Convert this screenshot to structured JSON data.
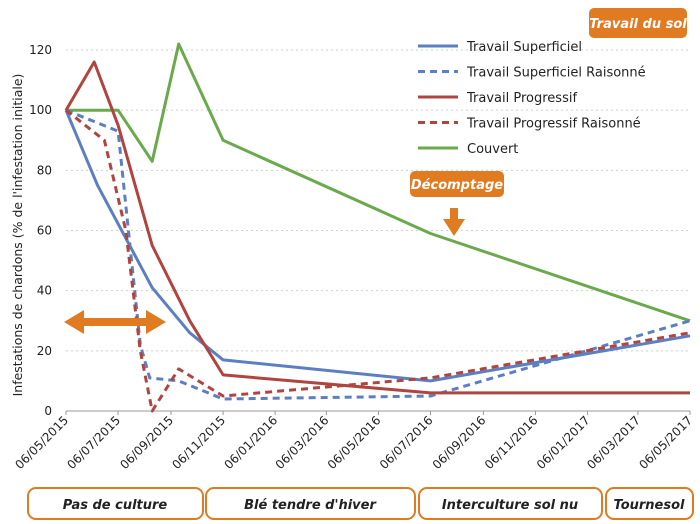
{
  "badges": {
    "travail_du_sol": "Travail du sol",
    "decomptage": "Décomptage"
  },
  "phases": [
    {
      "label": "Pas de culture"
    },
    {
      "label": "Blé tendre d'hiver"
    },
    {
      "label": "Interculture sol nu"
    },
    {
      "label": "Tournesol"
    }
  ],
  "colors": {
    "blue": "#5b7fc0",
    "red": "#b0443f",
    "green": "#6aaa4d",
    "orange": "#e07b22",
    "grid": "#cfcfcf"
  },
  "chart_data": {
    "type": "line",
    "title": "",
    "xlabel": "",
    "ylabel": "Infestations de chardons (% de l'infestation initiale)",
    "ylim": [
      0,
      120
    ],
    "yticks": [
      0,
      20,
      40,
      60,
      80,
      100,
      120
    ],
    "grid": true,
    "legend_position": "top-right",
    "x_tick_labels": [
      "06/05/2015",
      "06/07/2015",
      "06/09/2015",
      "06/11/2015",
      "06/01/2016",
      "06/03/2016",
      "06/05/2016",
      "06/07/2016",
      "06/09/2016",
      "06/11/2016",
      "06/01/2017",
      "06/03/2017",
      "06/05/2017"
    ],
    "series": [
      {
        "name": "Travail Superficiel",
        "color": "#5b7fc0",
        "dash": "solid",
        "x": [
          "2015-05-06",
          "2015-06-12",
          "2015-08-15",
          "2015-09-28",
          "2015-11-06",
          "2016-07-06",
          "2017-05-06"
        ],
        "y": [
          100,
          75,
          41,
          26,
          17,
          10,
          25
        ]
      },
      {
        "name": "Travail Superficiel Raisonné",
        "color": "#5b7fc0",
        "dash": "dashed",
        "x": [
          "2015-05-06",
          "2015-07-06",
          "2015-08-01",
          "2015-08-12",
          "2015-09-15",
          "2015-11-06",
          "2016-07-06",
          "2017-05-06"
        ],
        "y": [
          100,
          93,
          22,
          11,
          10,
          4,
          5,
          30
        ]
      },
      {
        "name": "Travail Progressif",
        "color": "#b0443f",
        "dash": "solid",
        "x": [
          "2015-05-06",
          "2015-06-08",
          "2015-07-06",
          "2015-08-15",
          "2015-09-28",
          "2015-11-06",
          "2016-07-06",
          "2017-05-06"
        ],
        "y": [
          100,
          116,
          95,
          55,
          30,
          12,
          6,
          6
        ]
      },
      {
        "name": "Travail Progressif Raisonné",
        "color": "#b0443f",
        "dash": "dashed",
        "x": [
          "2015-05-06",
          "2015-06-20",
          "2015-07-15",
          "2015-08-01",
          "2015-08-15",
          "2015-09-15",
          "2015-11-06",
          "2016-07-06",
          "2017-05-06"
        ],
        "y": [
          100,
          90,
          60,
          20,
          0,
          14,
          5,
          11,
          26
        ]
      },
      {
        "name": "Couvert",
        "color": "#6aaa4d",
        "dash": "solid",
        "x": [
          "2015-05-06",
          "2015-07-06",
          "2015-08-15",
          "2015-09-15",
          "2015-11-06",
          "2016-07-06",
          "2017-05-06"
        ],
        "y": [
          100,
          100,
          83,
          122,
          90,
          59,
          30
        ]
      }
    ]
  }
}
